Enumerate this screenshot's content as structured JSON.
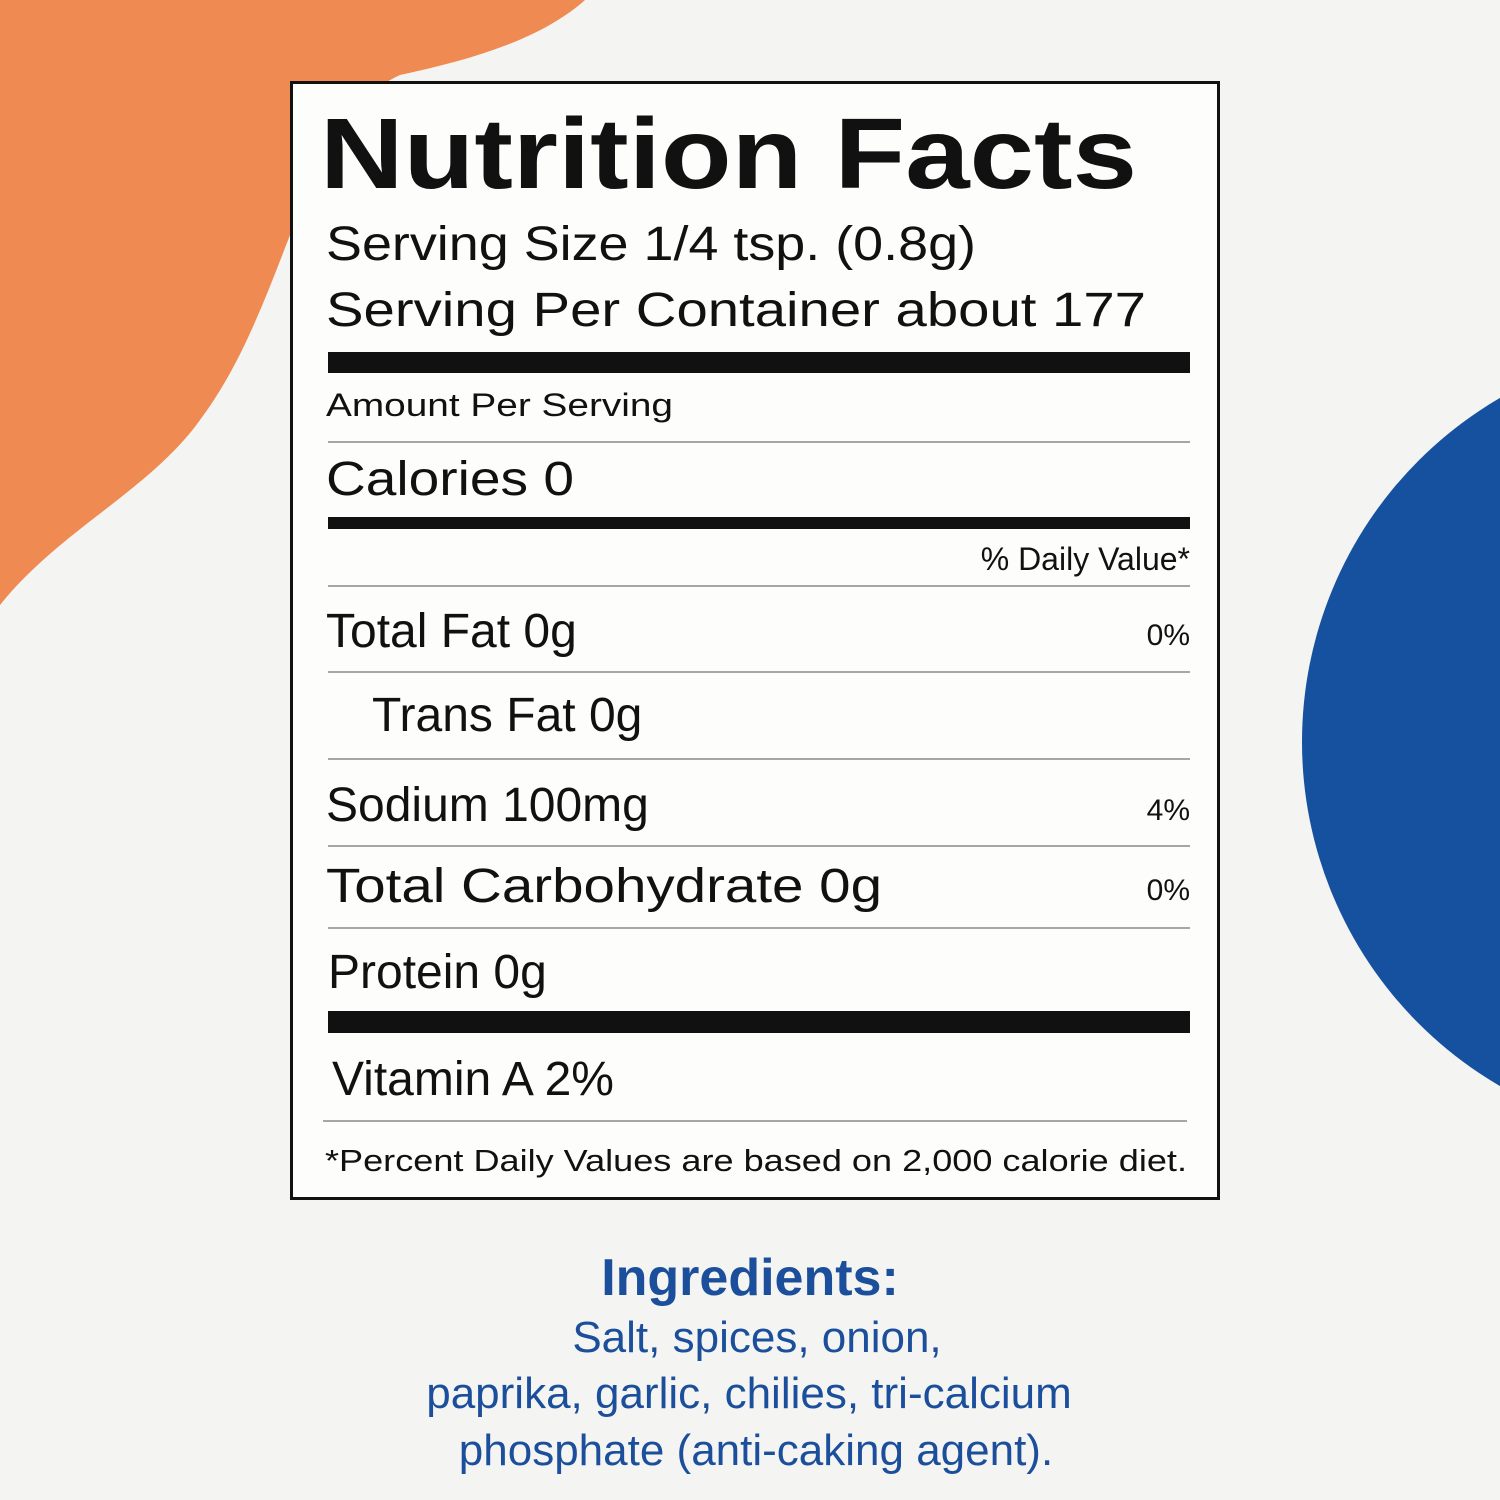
{
  "label": {
    "title": "Nutrition Facts",
    "serving_size": "Serving Size 1/4 tsp. (0.8g)",
    "servings_per_container": "Serving Per Container about 177",
    "amount_per_serving": "Amount Per Serving",
    "calories": "Calories 0",
    "daily_value_header": "% Daily Value*",
    "nutrients": [
      {
        "label": "Total Fat 0g",
        "dv": "0%"
      },
      {
        "label": "Trans Fat 0g"
      },
      {
        "label": "Sodium 100mg",
        "dv": "4%"
      },
      {
        "label": "Total Carbohydrate 0g",
        "dv": "0%"
      },
      {
        "label": "Protein 0g"
      }
    ],
    "vitamin": "Vitamin A 2%",
    "footnote": "*Percent Daily Values are based on 2,000 calorie diet."
  },
  "ingredients": {
    "heading": "Ingredients:",
    "lines": [
      "Salt, spices, onion,",
      "paprika, garlic, chilies, tri-calcium",
      "phosphate (anti-caking agent)."
    ]
  }
}
